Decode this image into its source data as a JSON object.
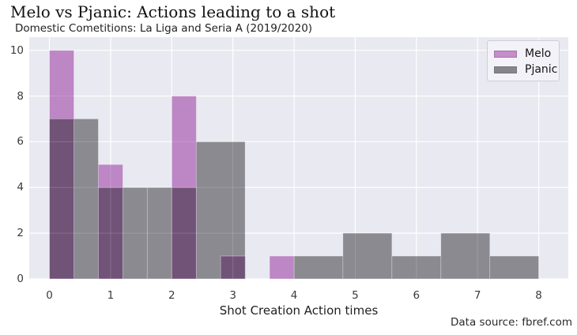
{
  "title": "Melo vs Pjanic: Actions leading to a shot",
  "subtitle": "Domestic Cometitions: La Liga and Seria A (2019/2020)",
  "source_note": "Data source: fbref.com",
  "colors": {
    "figure_bg": "#ffffff",
    "plot_bg": "#e9e9f1",
    "grid": "#ffffff",
    "melo_fill": "#bd86c5",
    "pjanic_fill": "#8a8a90",
    "overlap_fill": "#715377",
    "bar_edge": "rgba(245,245,250,0.35)",
    "grid_overlay": "rgba(255,255,255,0.16)",
    "tick_text": "#3a3a3a",
    "title_text": "#121212"
  },
  "legend": {
    "position": "upper-right",
    "items": [
      {
        "label": "Melo",
        "color": "#c58dc9"
      },
      {
        "label": "Pjanic",
        "color": "#85858b"
      }
    ]
  },
  "chart_data": {
    "type": "histogram",
    "title": "Melo vs Pjanic: Actions leading to a shot",
    "subtitle": "Domestic Cometitions: La Liga and Seria A (2019/2020)",
    "xlabel": "Shot Creation Action times",
    "ylabel": "",
    "grid": true,
    "xlim": [
      -0.3295,
      8.4835
    ],
    "ylim": [
      0,
      10.577
    ],
    "xticks": [
      0,
      1,
      2,
      3,
      4,
      5,
      6,
      7,
      8
    ],
    "yticks": [
      0,
      2,
      4,
      6,
      8,
      10
    ],
    "overlap_color": "#715377",
    "series": [
      {
        "name": "Melo",
        "color": "#bd86c5",
        "bin_width": 0.4,
        "bins": [
          {
            "x0": 0.0,
            "x1": 0.4,
            "count": 10
          },
          {
            "x0": 0.4,
            "x1": 0.8,
            "count": 0
          },
          {
            "x0": 0.8,
            "x1": 1.2,
            "count": 5
          },
          {
            "x0": 1.2,
            "x1": 1.6,
            "count": 0
          },
          {
            "x0": 1.6,
            "x1": 2.0,
            "count": 0
          },
          {
            "x0": 2.0,
            "x1": 2.4,
            "count": 8
          },
          {
            "x0": 2.4,
            "x1": 2.8,
            "count": 0
          },
          {
            "x0": 2.8,
            "x1": 3.2,
            "count": 1
          },
          {
            "x0": 3.2,
            "x1": 3.6,
            "count": 0
          },
          {
            "x0": 3.6,
            "x1": 4.0,
            "count": 1
          }
        ],
        "distribution": {
          "0": 10,
          "1": 5,
          "2": 8,
          "3": 1,
          "4": 1
        }
      },
      {
        "name": "Pjanic",
        "color": "#8a8a90",
        "bin_width": 0.8,
        "bins": [
          {
            "x0": 0.0,
            "x1": 0.8,
            "count": 7
          },
          {
            "x0": 0.8,
            "x1": 1.6,
            "count": 4
          },
          {
            "x0": 1.6,
            "x1": 2.4,
            "count": 4
          },
          {
            "x0": 2.4,
            "x1": 3.2,
            "count": 6
          },
          {
            "x0": 3.2,
            "x1": 4.0,
            "count": 0
          },
          {
            "x0": 4.0,
            "x1": 4.8,
            "count": 1
          },
          {
            "x0": 4.8,
            "x1": 5.6,
            "count": 2
          },
          {
            "x0": 5.6,
            "x1": 6.4,
            "count": 1
          },
          {
            "x0": 6.4,
            "x1": 7.2,
            "count": 2
          },
          {
            "x0": 7.2,
            "x1": 8.0,
            "count": 1
          }
        ],
        "distribution": {
          "0": 7,
          "1": 4,
          "2": 4,
          "3": 6,
          "4": 1,
          "5": 2,
          "6": 1,
          "7": 2,
          "8": 1
        }
      }
    ]
  }
}
